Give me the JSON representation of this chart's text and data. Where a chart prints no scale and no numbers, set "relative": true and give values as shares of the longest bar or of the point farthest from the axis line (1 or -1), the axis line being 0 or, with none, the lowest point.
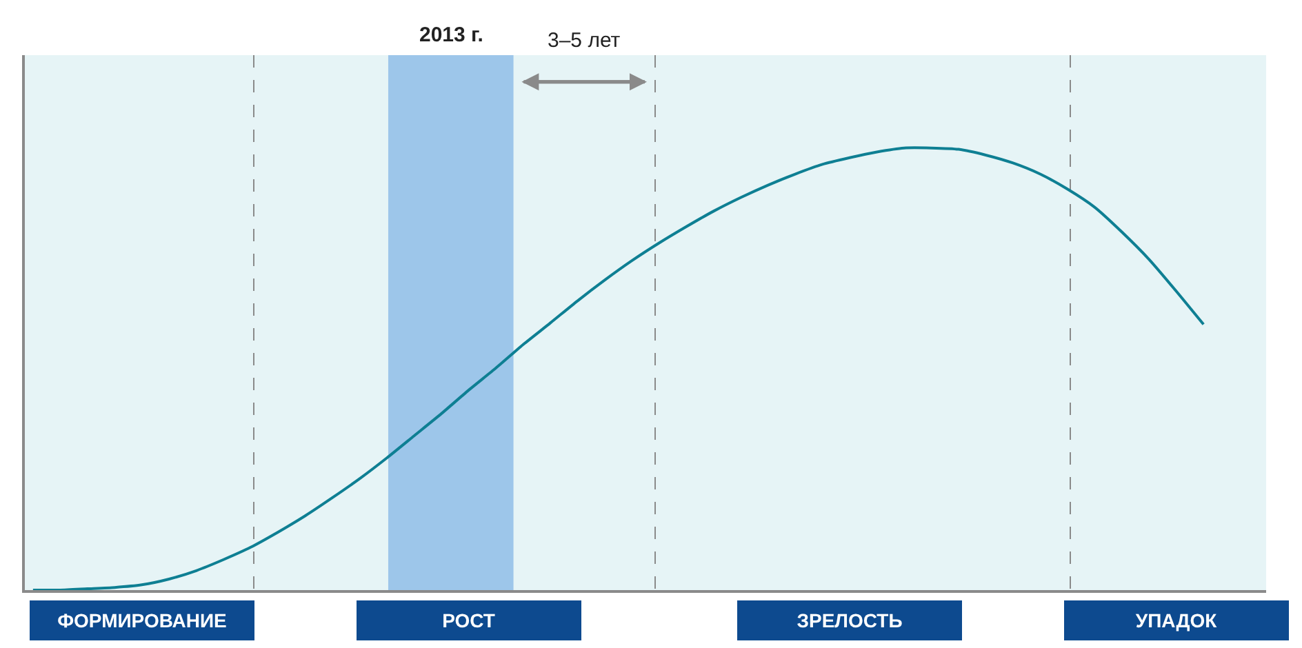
{
  "chart_data": {
    "type": "line",
    "relative": true,
    "categories": [
      null,
      null,
      null,
      null,
      "ФОРМИРОВАНИЕ",
      null,
      null,
      null,
      null,
      null,
      null,
      null,
      null,
      null,
      null,
      null,
      "РОСТ",
      null,
      null,
      null,
      null,
      null,
      null,
      null,
      null,
      null,
      null,
      null,
      null,
      null,
      "ЗРЕЛОСТЬ",
      null,
      null,
      null,
      null,
      null,
      null,
      null,
      null,
      null,
      null,
      null,
      "УПАДОК",
      null,
      null,
      null
    ],
    "series": [
      {
        "color": "#0e7f93",
        "values": [
          0,
          0,
          0.003,
          0.006,
          0.012,
          0.025,
          0.044,
          0.069,
          0.097,
          0.131,
          0.168,
          0.209,
          0.252,
          0.299,
          0.349,
          0.399,
          0.452,
          0.502,
          0.555,
          0.604,
          0.654,
          0.701,
          0.745,
          0.785,
          0.822,
          0.857,
          0.888,
          0.916,
          0.941,
          0.963,
          0.978,
          0.991,
          1.0,
          1.0,
          0.997,
          0.984,
          0.966,
          0.941,
          0.907,
          0.866,
          0.81,
          0.748,
          0.676,
          0.601,
          null,
          null
        ]
      }
    ],
    "annotations": [
      "2013 г.",
      "3–5 лет"
    ],
    "grid": "x",
    "marker": "none",
    "line_style": "solid"
  }
}
